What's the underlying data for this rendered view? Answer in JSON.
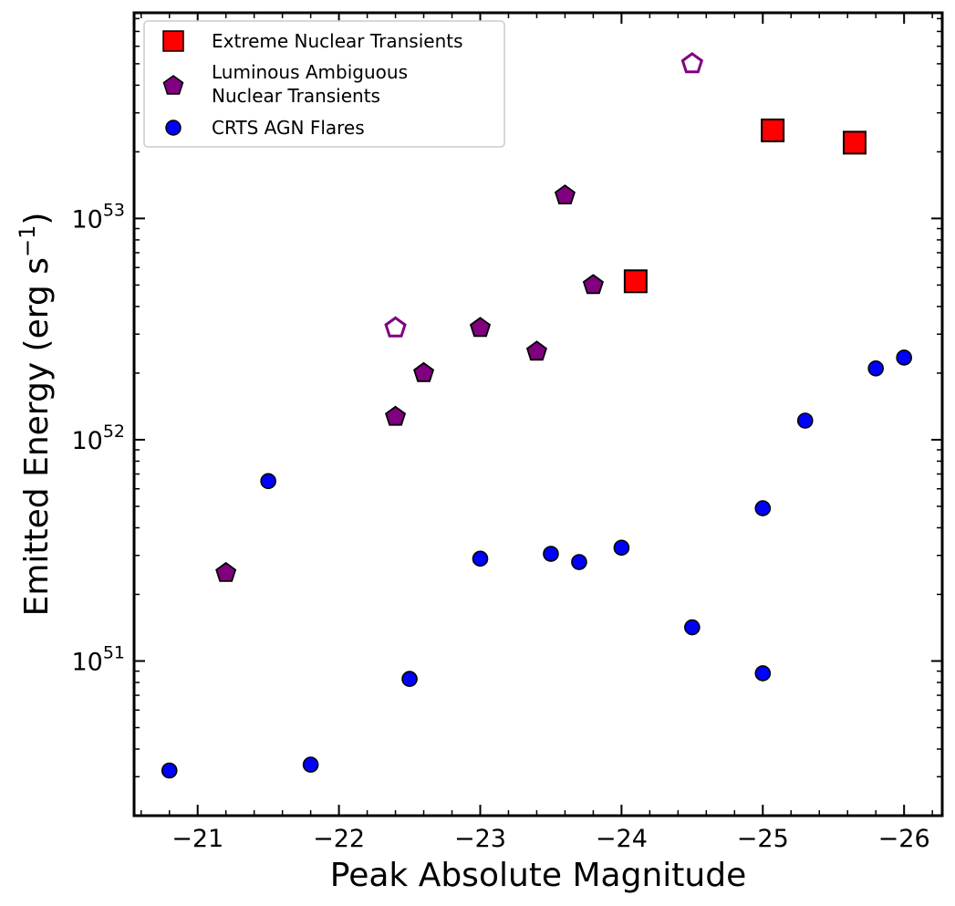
{
  "chart_data": {
    "type": "scatter",
    "xlabel": "Peak Absolute Magnitude",
    "ylabel": "Emitted Energy (erg s",
    "ylabel_sup": "−1",
    "ylabel_close": ")",
    "xlim": [
      -20.55,
      -26.27
    ],
    "ylim": [
      2e+50,
      8.5e+53
    ],
    "yscale": "log",
    "x_ticks": [
      -21,
      -22,
      -23,
      -24,
      -25,
      -26
    ],
    "x_tick_labels": [
      "−21",
      "−22",
      "−23",
      "−24",
      "−25",
      "−26"
    ],
    "y_ticks": [
      {
        "value": 1e+51,
        "base": "10",
        "exp": "51"
      },
      {
        "value": 1e+52,
        "base": "10",
        "exp": "52"
      },
      {
        "value": 1e+53,
        "base": "10",
        "exp": "53"
      }
    ],
    "legend_position": "top-left",
    "series": [
      {
        "name": "Extreme Nuclear Transients",
        "marker": "square",
        "color": "#ff0000",
        "edge": "#000000",
        "points": [
          {
            "x": -24.1,
            "y": 5.2e+52
          },
          {
            "x": -25.07,
            "y": 2.5e+53
          },
          {
            "x": -25.65,
            "y": 2.2e+53
          }
        ]
      },
      {
        "name_lines": [
          "Luminous Ambiguous",
          "Nuclear Transients"
        ],
        "name": "Luminous Ambiguous Nuclear Transients",
        "marker": "pentagon",
        "color": "#800080",
        "edge": "#000000",
        "points": [
          {
            "x": -21.2,
            "y": 2.5e+51
          },
          {
            "x": -22.4,
            "y": 1.27e+52
          },
          {
            "x": -22.6,
            "y": 2e+52
          },
          {
            "x": -23.0,
            "y": 3.2e+52
          },
          {
            "x": -23.4,
            "y": 2.5e+52
          },
          {
            "x": -23.6,
            "y": 1.27e+53
          },
          {
            "x": -23.8,
            "y": 5e+52
          }
        ],
        "open_points": [
          {
            "x": -22.4,
            "y": 3.2e+52
          },
          {
            "x": -24.5,
            "y": 5e+53
          }
        ]
      },
      {
        "name": "CRTS AGN Flares",
        "marker": "circle",
        "color": "#0000ff",
        "edge": "#000000",
        "points": [
          {
            "x": -20.8,
            "y": 3.2e+50
          },
          {
            "x": -21.5,
            "y": 6.5e+51
          },
          {
            "x": -21.8,
            "y": 3.4e+50
          },
          {
            "x": -22.5,
            "y": 8.3e+50
          },
          {
            "x": -23.0,
            "y": 2.9e+51
          },
          {
            "x": -23.5,
            "y": 3.05e+51
          },
          {
            "x": -23.7,
            "y": 2.8e+51
          },
          {
            "x": -24.0,
            "y": 3.25e+51
          },
          {
            "x": -24.5,
            "y": 1.42e+51
          },
          {
            "x": -25.0,
            "y": 4.9e+51
          },
          {
            "x": -25.0,
            "y": 8.8e+50
          },
          {
            "x": -25.3,
            "y": 1.22e+52
          },
          {
            "x": -25.8,
            "y": 2.1e+52
          },
          {
            "x": -26.0,
            "y": 2.35e+52
          }
        ]
      }
    ]
  }
}
